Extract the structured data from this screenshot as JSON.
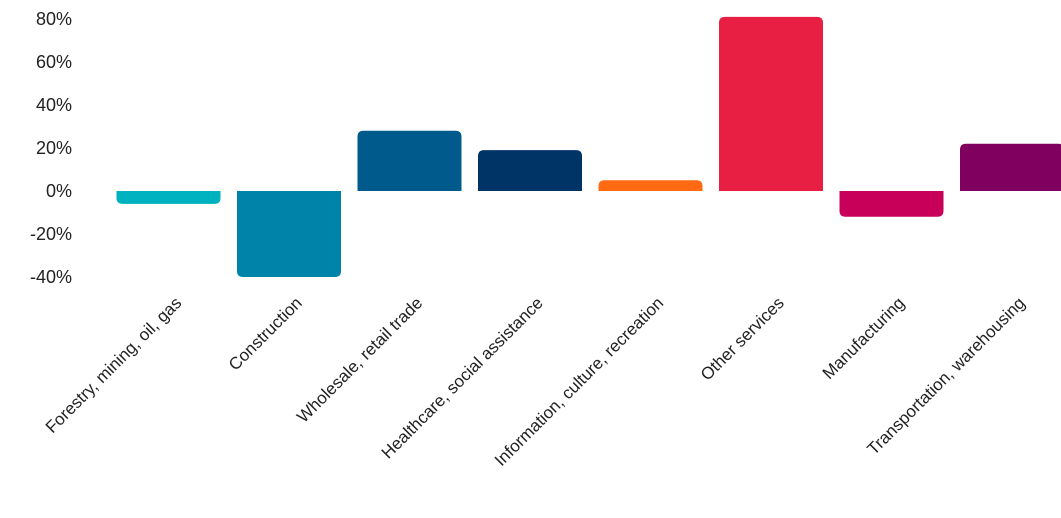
{
  "chart_data": {
    "type": "bar",
    "title": "",
    "xlabel": "",
    "ylabel": "",
    "ylim": [
      -40,
      80
    ],
    "yticks": [
      80,
      60,
      40,
      20,
      0,
      -20,
      -40
    ],
    "ytick_labels": [
      "80%",
      "60%",
      "40%",
      "20%",
      "0%",
      "-20%",
      "-40%"
    ],
    "grid": false,
    "categories": [
      "Forestry, mining, oil, gas",
      "Construction",
      "Wholesale, retail trade",
      "Healthcare, social assistance",
      "Information, culture, recreation",
      "Other services",
      "Manufacturing",
      "Transportation, warehousing"
    ],
    "values": [
      -6,
      -40,
      28,
      19,
      5,
      81,
      -12,
      22
    ],
    "colors": [
      "#00B2BF",
      "#0083A9",
      "#005A8C",
      "#003366",
      "#FF6A13",
      "#E81F43",
      "#C8005A",
      "#800060"
    ]
  }
}
